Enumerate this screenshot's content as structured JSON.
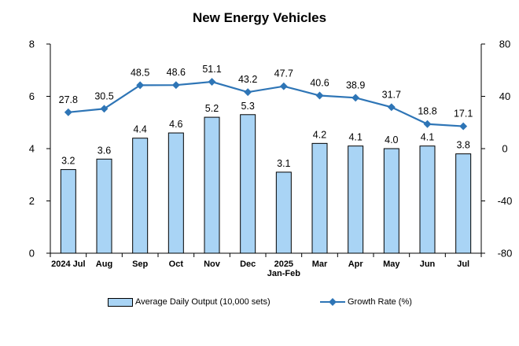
{
  "chart_data": {
    "type": "bar",
    "title": "New Energy Vehicles",
    "categories": [
      [
        "2024 Jul"
      ],
      [
        "Aug"
      ],
      [
        "Sep"
      ],
      [
        "Oct"
      ],
      [
        "Nov"
      ],
      [
        "Dec"
      ],
      [
        "2025",
        "Jan-Feb"
      ],
      [
        "Mar"
      ],
      [
        "Apr"
      ],
      [
        "May"
      ],
      [
        "Jun"
      ],
      [
        "Jul"
      ]
    ],
    "series": [
      {
        "name": "Average Daily Output (10,000 sets)",
        "type": "bar",
        "axis": "left",
        "color": "#a9d4f5",
        "values": [
          3.2,
          3.6,
          4.4,
          4.6,
          5.2,
          5.3,
          3.1,
          4.2,
          4.1,
          4.0,
          4.1,
          3.8
        ],
        "labels": [
          "3.2",
          "3.6",
          "4.4",
          "4.6",
          "5.2",
          "5.3",
          "3.1",
          "4.2",
          "4.1",
          "4.0",
          "4.1",
          "3.8"
        ]
      },
      {
        "name": "Growth Rate (%)",
        "type": "line",
        "axis": "right",
        "color": "#2e75b6",
        "values": [
          27.8,
          30.5,
          48.5,
          48.6,
          51.1,
          43.2,
          47.7,
          40.6,
          38.9,
          31.7,
          18.8,
          17.1
        ],
        "labels": [
          "27.8",
          "30.5",
          "48.5",
          "48.6",
          "51.1",
          "43.2",
          "47.7",
          "40.6",
          "38.9",
          "31.7",
          "18.8",
          "17.1"
        ]
      }
    ],
    "left_axis": {
      "ylim": [
        0,
        8
      ],
      "ticks": [
        "0",
        "2",
        "4",
        "6",
        "8"
      ]
    },
    "right_axis": {
      "ylim": [
        -80,
        80
      ],
      "ticks": [
        "-80",
        "-40",
        "0",
        "40",
        "80"
      ]
    },
    "grid": false,
    "legend_position": "bottom"
  }
}
